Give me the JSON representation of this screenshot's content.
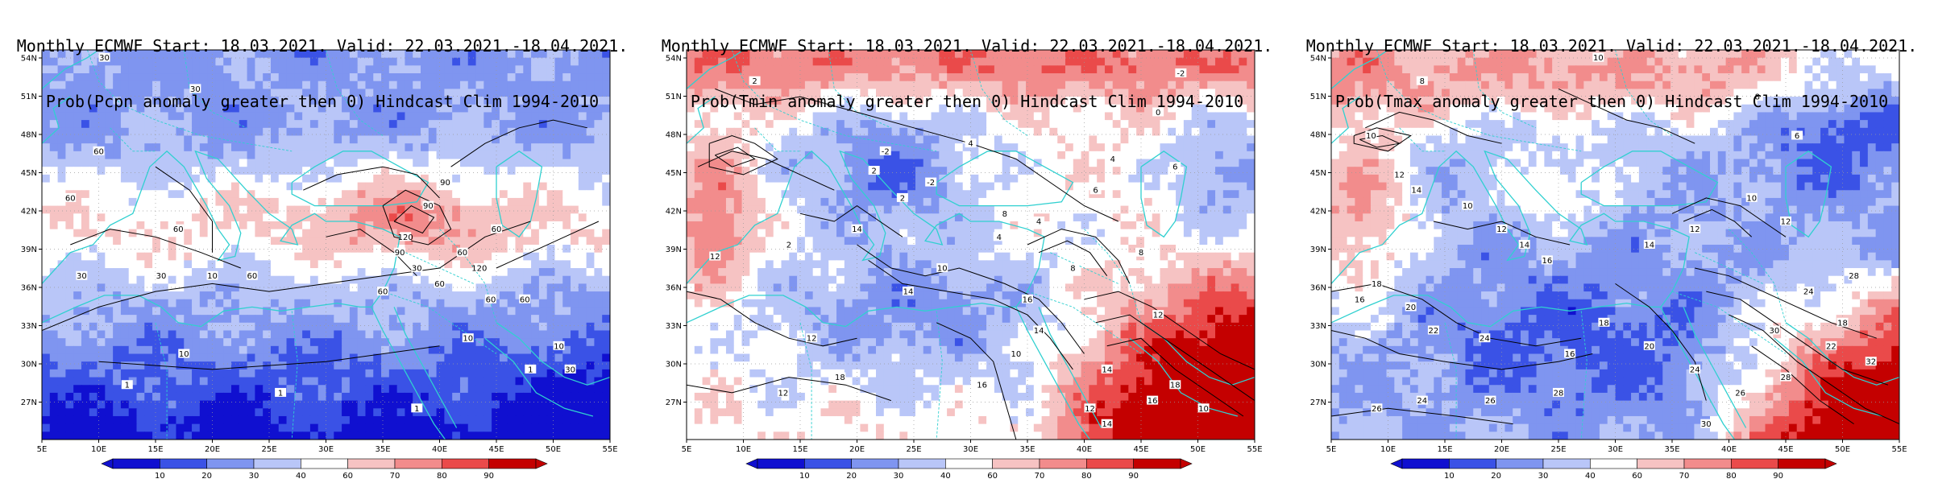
{
  "colors": {
    "blue_dark": "#1010d0",
    "blue_mid": "#3a52e6",
    "blue_light": "#7f95f0",
    "blue_pale": "#b9c6f8",
    "white": "#ffffff",
    "red_pale": "#f6c3c3",
    "red_light": "#f28c8c",
    "red_mid": "#ea4a4a",
    "red_dark": "#c40000",
    "coast": "#30d0d0",
    "contour": "#000000",
    "frame": "#000000"
  },
  "x_ticks": [
    "5E",
    "10E",
    "15E",
    "20E",
    "25E",
    "30E",
    "35E",
    "40E",
    "45E",
    "50E",
    "55E"
  ],
  "y_ticks": [
    "54N",
    "51N",
    "48N",
    "45N",
    "42N",
    "39N",
    "36N",
    "33N",
    "30N",
    "27N"
  ],
  "colorbar": {
    "levels": [
      "10",
      "20",
      "30",
      "40",
      "60",
      "70",
      "80",
      "90"
    ]
  },
  "panels": [
    {
      "title_line1": "Monthly ECMWF Start: 18.03.2021. Valid: 22.03.2021.-18.04.2021.",
      "title_line2": "Prob(Pcpn anomaly greater then 0) Hindcast Clim 1994-2010",
      "variable": "Pcpn",
      "contour_labels": [
        "30",
        "30",
        "60",
        "60",
        "60",
        "30",
        "30",
        "60",
        "90",
        "120",
        "60",
        "60",
        "90",
        "60",
        "90",
        "30",
        "60",
        "120",
        "60",
        "10",
        "10",
        "10",
        "1",
        "1",
        "1",
        "1",
        "30",
        "10",
        "60"
      ]
    },
    {
      "title_line1": "Monthly ECMWF Start: 18.03.2021. Valid: 22.03.2021.-18.04.2021.",
      "title_line2": "Prob(Tmin anomaly greater then 0) Hindcast Clim 1994-2010",
      "variable": "Tmin",
      "contour_labels": [
        "-2",
        "2",
        "0",
        "-2",
        "2",
        "4",
        "6",
        "4",
        "-2",
        "2",
        "8",
        "4",
        "6",
        "2",
        "8",
        "10",
        "12",
        "14",
        "16",
        "12",
        "14",
        "12",
        "18",
        "12",
        "16",
        "14",
        "10",
        "12",
        "14",
        "16",
        "18",
        "10",
        "8",
        "4",
        "14"
      ]
    },
    {
      "title_line1": "Monthly ECMWF Start: 18.03.2021. Valid: 22.03.2021.-18.04.2021.",
      "title_line2": "Prob(Tmax anomaly greater then 0) Hindcast Clim 1994-2010",
      "variable": "Tmax",
      "contour_labels": [
        "8",
        "10",
        "8",
        "6",
        "10",
        "12",
        "14",
        "10",
        "12",
        "16",
        "14",
        "12",
        "10",
        "12",
        "18",
        "16",
        "20",
        "22",
        "24",
        "16",
        "18",
        "20",
        "24",
        "26",
        "28",
        "22",
        "18",
        "26",
        "28",
        "30",
        "32",
        "24",
        "28",
        "24",
        "26",
        "30",
        "14"
      ]
    }
  ]
}
